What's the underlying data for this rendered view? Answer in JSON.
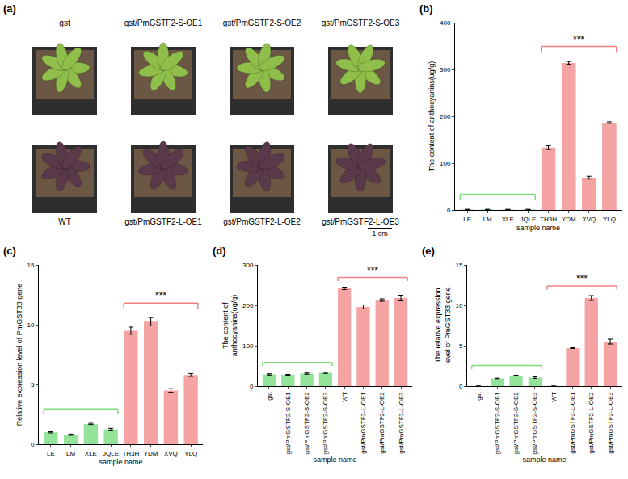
{
  "photo_panel": {
    "panel_label": "(a)",
    "rows": [
      {
        "color": "#8fbf4a",
        "labels": [
          "gst",
          "gst/PmGSTF2-S-OE1",
          "gst/PmGSTF2-S-OE2",
          "gst/PmGSTF2-S-OE3"
        ]
      },
      {
        "color": "#5a3a4a",
        "labels": [
          "WT",
          "gst/PmGSTF2-L-OE1",
          "gst/PmGSTF2-L-OE2",
          "gst/PmGSTF2-L-OE3"
        ]
      }
    ],
    "scale_bar": "1 cm"
  },
  "chart_data": [
    {
      "type": "bar",
      "panel_label": "(b)",
      "x_label": "sample name",
      "y_label": "The content of anthocyanins(ug/g)",
      "categories": [
        "LE",
        "LM",
        "XLE",
        "JQLE",
        "TH3H",
        "YDM",
        "XVQ",
        "YLQ"
      ],
      "values": [
        1,
        1,
        1,
        1,
        133,
        314,
        69,
        186
      ],
      "errors": [
        0.5,
        0.5,
        0.5,
        0.5,
        4,
        3,
        3,
        2
      ],
      "colors": [
        "#93e39a",
        "#93e39a",
        "#93e39a",
        "#93e39a",
        "#f5a3a3",
        "#f5a3a3",
        "#f5a3a3",
        "#f5a3a3"
      ],
      "ylim": [
        0,
        400
      ],
      "yticks": [
        0,
        100,
        200,
        300,
        400
      ],
      "grid": false,
      "brackets": [
        {
          "from": 0,
          "to": 3,
          "color": "#7ddc7d"
        },
        {
          "from": 4,
          "to": 7,
          "color": "#f08080",
          "text": "***"
        }
      ]
    },
    {
      "type": "bar",
      "panel_label": "(c)",
      "x_label": "sample name",
      "y_label": "Relative expression level of PmGST33 gene",
      "categories": [
        "LE",
        "LM",
        "XLE",
        "JQLE",
        "TH3H",
        "YDM",
        "XVQ",
        "YLQ"
      ],
      "values": [
        1.0,
        0.8,
        1.7,
        1.25,
        9.5,
        10.25,
        4.5,
        5.8
      ],
      "errors": [
        0.05,
        0.05,
        0.05,
        0.08,
        0.3,
        0.35,
        0.15,
        0.12
      ],
      "colors": [
        "#93e39a",
        "#93e39a",
        "#93e39a",
        "#93e39a",
        "#f5a3a3",
        "#f5a3a3",
        "#f5a3a3",
        "#f5a3a3"
      ],
      "ylim": [
        0,
        15
      ],
      "yticks": [
        0,
        5,
        10,
        15
      ],
      "grid": false,
      "brackets": [
        {
          "from": 0,
          "to": 3,
          "color": "#7ddc7d"
        },
        {
          "from": 4,
          "to": 7,
          "color": "#f08080",
          "text": "***"
        }
      ]
    },
    {
      "type": "bar",
      "panel_label": "(d)",
      "x_label": "sample name",
      "y_label": "The content of anthocyanins(ug/g)",
      "categories": [
        "gst",
        "gst/PmGSTF2-S-OE1",
        "gst/PmGSTF2-S-OE2",
        "gst/PmGSTF2-S-OE3",
        "WT",
        "gst/PmGSTF2-L-OE1",
        "gst/PmGSTF2-L-OE2",
        "gst/PmGSTF2-L-OE3"
      ],
      "values": [
        29,
        28,
        31,
        33,
        242,
        196,
        213,
        218
      ],
      "errors": [
        1.5,
        1,
        1.5,
        1.5,
        3,
        5,
        3,
        7
      ],
      "colors": [
        "#93e39a",
        "#93e39a",
        "#93e39a",
        "#93e39a",
        "#f5a3a3",
        "#f5a3a3",
        "#f5a3a3",
        "#f5a3a3"
      ],
      "ylim": [
        0,
        300
      ],
      "yticks": [
        0,
        100,
        200,
        300
      ],
      "grid": false,
      "brackets": [
        {
          "from": 0,
          "to": 3,
          "color": "#7ddc7d"
        },
        {
          "from": 4,
          "to": 7,
          "color": "#f08080",
          "text": "***"
        }
      ]
    },
    {
      "type": "bar",
      "panel_label": "(e)",
      "x_label": "sample name",
      "y_label": "The relative expression level of PmGST33 gene",
      "categories": [
        "gst",
        "gst/PmGSTF2-S-OE1",
        "gst/PmGSTF2-S-OE2",
        "gst/PmGSTF2-S-OE3",
        "WT",
        "gst/PmGSTF2-L-OE1",
        "gst/PmGSTF2-L-OE2",
        "gst/PmGSTF2-L-OE3"
      ],
      "values": [
        0,
        0.95,
        1.3,
        1.05,
        0,
        4.7,
        10.9,
        5.5
      ],
      "errors": [
        0,
        0.03,
        0.05,
        0.1,
        0,
        0.05,
        0.3,
        0.3
      ],
      "colors": [
        "#93e39a",
        "#93e39a",
        "#93e39a",
        "#93e39a",
        "#f5a3a3",
        "#f5a3a3",
        "#f5a3a3",
        "#f5a3a3"
      ],
      "ylim": [
        0,
        15
      ],
      "yticks": [
        0,
        5,
        10,
        15
      ],
      "grid": false,
      "brackets": [
        {
          "from": 0,
          "to": 3,
          "color": "#7ddc7d"
        },
        {
          "from": 4,
          "to": 7,
          "color": "#f08080",
          "text": "***"
        }
      ]
    }
  ]
}
